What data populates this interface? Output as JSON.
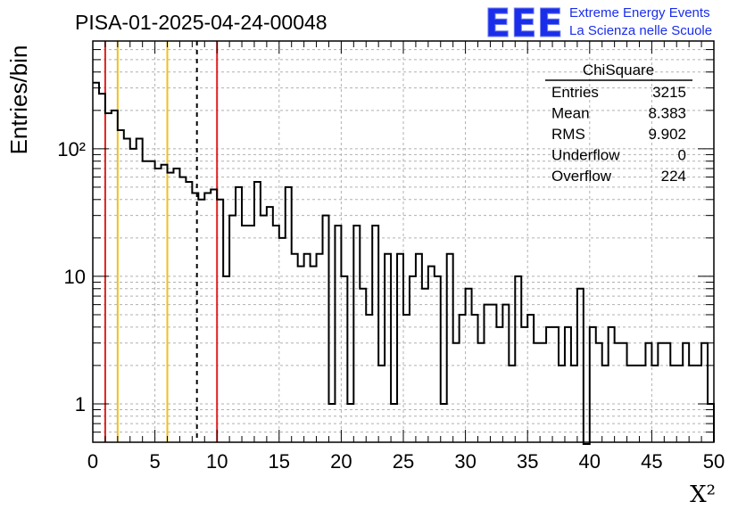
{
  "header": {
    "title": "PISA-01-2025-04-24-00048",
    "logo_text": "EEE",
    "logo_line1": "Extreme Energy Events",
    "logo_line2": "La Scienza nelle Scuole"
  },
  "stats": {
    "name": "ChiSquare",
    "rows": [
      {
        "label": "Entries",
        "value": "3215"
      },
      {
        "label": "Mean",
        "value": "8.383"
      },
      {
        "label": "RMS",
        "value": "9.902"
      },
      {
        "label": "Underflow",
        "value": "0"
      },
      {
        "label": "Overflow",
        "value": "224"
      }
    ]
  },
  "chart_data": {
    "type": "bar",
    "subtype": "step-histogram",
    "ylabel": "Entries/bin",
    "xlabel": "X²",
    "xlim": [
      0,
      50
    ],
    "ylim": [
      0.5,
      700
    ],
    "yscale": "log",
    "bin_width": 0.5,
    "grid": true,
    "x_ticks": [
      0,
      5,
      10,
      15,
      20,
      25,
      30,
      35,
      40,
      45,
      50
    ],
    "x_tick_labels": [
      "0",
      "5",
      "10",
      "15",
      "20",
      "25",
      "30",
      "35",
      "40",
      "45",
      "50"
    ],
    "y_ticks": [
      1,
      10,
      100
    ],
    "y_tick_labels": [
      "1",
      "10",
      "10²"
    ],
    "values": [
      330,
      270,
      190,
      200,
      140,
      120,
      100,
      120,
      80,
      80,
      70,
      75,
      65,
      70,
      60,
      55,
      45,
      40,
      45,
      48,
      40,
      10,
      30,
      50,
      25,
      25,
      55,
      30,
      35,
      25,
      20,
      50,
      15,
      12,
      15,
      12,
      15,
      30,
      1,
      25,
      10,
      1,
      25,
      8,
      5,
      25,
      2,
      15,
      1,
      15,
      5,
      10,
      15,
      8,
      12,
      10,
      1,
      15,
      3,
      5,
      8,
      5,
      3,
      6,
      6,
      4,
      6,
      2,
      10,
      4,
      5,
      3,
      3,
      4,
      4,
      2,
      4,
      2,
      8,
      0.4,
      4,
      3,
      2,
      4,
      3,
      3,
      2,
      2,
      2,
      3,
      2,
      3,
      3,
      2,
      2,
      3,
      2,
      2,
      3,
      1
    ],
    "vlines": [
      {
        "x": 1,
        "color": "#e02020",
        "style": "solid"
      },
      {
        "x": 2,
        "color": "#f0c020",
        "style": "solid"
      },
      {
        "x": 6,
        "color": "#f0c020",
        "style": "solid"
      },
      {
        "x": 8.383,
        "color": "#000000",
        "style": "dashed"
      },
      {
        "x": 10,
        "color": "#e02020",
        "style": "solid"
      }
    ]
  }
}
